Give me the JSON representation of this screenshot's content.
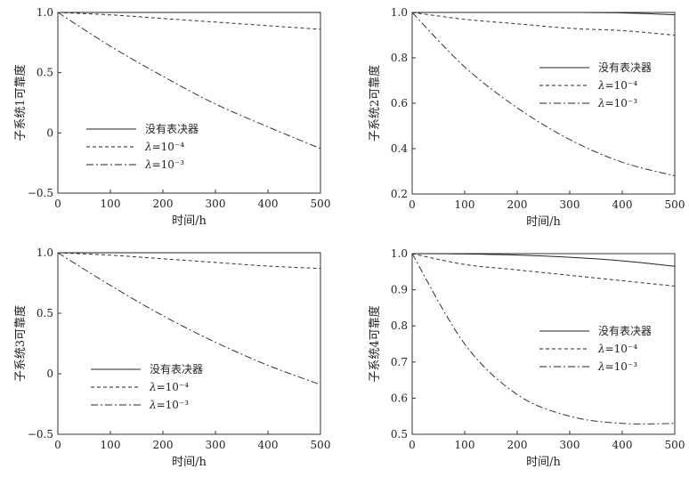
{
  "chart_data": [
    {
      "type": "line",
      "xlabel": "时间/h",
      "ylabel": "子系统1可靠度",
      "xlim": [
        0,
        500
      ],
      "ylim": [
        -0.5,
        1.0
      ],
      "x_ticks": [
        "0",
        "100",
        "200",
        "300",
        "400",
        "500"
      ],
      "y_ticks": [
        "−0.5",
        "0",
        "0.5",
        "1.0"
      ],
      "legend_position": "bottom-left",
      "series": [
        {
          "name": "没有表决器",
          "style": "solid",
          "x": [
            0,
            100,
            200,
            300,
            400,
            500
          ],
          "y": [
            1.0,
            1.0,
            1.0,
            1.0,
            1.0,
            1.0
          ]
        },
        {
          "name": "λ=10⁻⁴",
          "style": "dashed",
          "x": [
            0,
            100,
            200,
            300,
            400,
            500
          ],
          "y": [
            1.0,
            0.98,
            0.95,
            0.92,
            0.89,
            0.86
          ]
        },
        {
          "name": "λ=10⁻³",
          "style": "dashdot",
          "x": [
            0,
            100,
            200,
            300,
            400,
            500
          ],
          "y": [
            1.0,
            0.72,
            0.47,
            0.24,
            0.05,
            -0.13
          ]
        }
      ]
    },
    {
      "type": "line",
      "xlabel": "时间/h",
      "ylabel": "子系统2可靠度",
      "xlim": [
        0,
        500
      ],
      "ylim": [
        0.2,
        1.0
      ],
      "x_ticks": [
        "0",
        "100",
        "200",
        "300",
        "400",
        "500"
      ],
      "y_ticks": [
        "0.2",
        "0.4",
        "0.6",
        "0.8",
        "1.0"
      ],
      "legend_position": "top-right",
      "series": [
        {
          "name": "没有表决器",
          "style": "solid",
          "x": [
            0,
            100,
            200,
            300,
            400,
            500
          ],
          "y": [
            1.0,
            1.0,
            1.0,
            1.0,
            0.998,
            0.99
          ]
        },
        {
          "name": "λ=10⁻⁴",
          "style": "dashed",
          "x": [
            0,
            100,
            200,
            300,
            400,
            500
          ],
          "y": [
            1.0,
            0.97,
            0.95,
            0.93,
            0.92,
            0.9
          ]
        },
        {
          "name": "λ=10⁻³",
          "style": "dashdot",
          "x": [
            0,
            100,
            200,
            300,
            400,
            500
          ],
          "y": [
            1.0,
            0.76,
            0.58,
            0.44,
            0.34,
            0.28
          ]
        }
      ]
    },
    {
      "type": "line",
      "xlabel": "时间/h",
      "ylabel": "子系统3可靠度",
      "xlim": [
        0,
        500
      ],
      "ylim": [
        -0.5,
        1.0
      ],
      "x_ticks": [
        "0",
        "100",
        "200",
        "300",
        "400",
        "500"
      ],
      "y_ticks": [
        "−0.5",
        "0",
        "0.5",
        "1.0"
      ],
      "legend_position": "bottom-left",
      "series": [
        {
          "name": "没有表决器",
          "style": "solid",
          "x": [
            0,
            100,
            200,
            300,
            400,
            500
          ],
          "y": [
            1.0,
            1.0,
            1.0,
            1.0,
            1.0,
            1.0
          ]
        },
        {
          "name": "λ=10⁻⁴",
          "style": "dashed",
          "x": [
            0,
            100,
            200,
            300,
            400,
            500
          ],
          "y": [
            1.0,
            0.98,
            0.95,
            0.92,
            0.89,
            0.87
          ]
        },
        {
          "name": "λ=10⁻³",
          "style": "dashdot",
          "x": [
            0,
            100,
            200,
            300,
            400,
            500
          ],
          "y": [
            1.0,
            0.73,
            0.48,
            0.26,
            0.07,
            -0.09
          ]
        }
      ]
    },
    {
      "type": "line",
      "xlabel": "时间/h",
      "ylabel": "子系统4可靠度",
      "xlim": [
        0,
        500
      ],
      "ylim": [
        0.5,
        1.0
      ],
      "x_ticks": [
        "0",
        "100",
        "200",
        "300",
        "400",
        "500"
      ],
      "y_ticks": [
        "0.5",
        "0.6",
        "0.7",
        "0.8",
        "0.9",
        "1.0"
      ],
      "legend_position": "right",
      "series": [
        {
          "name": "没有表决器",
          "style": "solid",
          "x": [
            0,
            100,
            200,
            300,
            400,
            500
          ],
          "y": [
            1.0,
            0.999,
            0.996,
            0.99,
            0.98,
            0.965
          ]
        },
        {
          "name": "λ=10⁻⁴",
          "style": "dashed",
          "x": [
            0,
            100,
            200,
            300,
            400,
            500
          ],
          "y": [
            1.0,
            0.97,
            0.955,
            0.94,
            0.925,
            0.91
          ]
        },
        {
          "name": "λ=10⁻³",
          "style": "dashdot",
          "x": [
            0,
            100,
            200,
            300,
            400,
            500
          ],
          "y": [
            1.0,
            0.75,
            0.61,
            0.55,
            0.53,
            0.53
          ]
        }
      ]
    }
  ]
}
